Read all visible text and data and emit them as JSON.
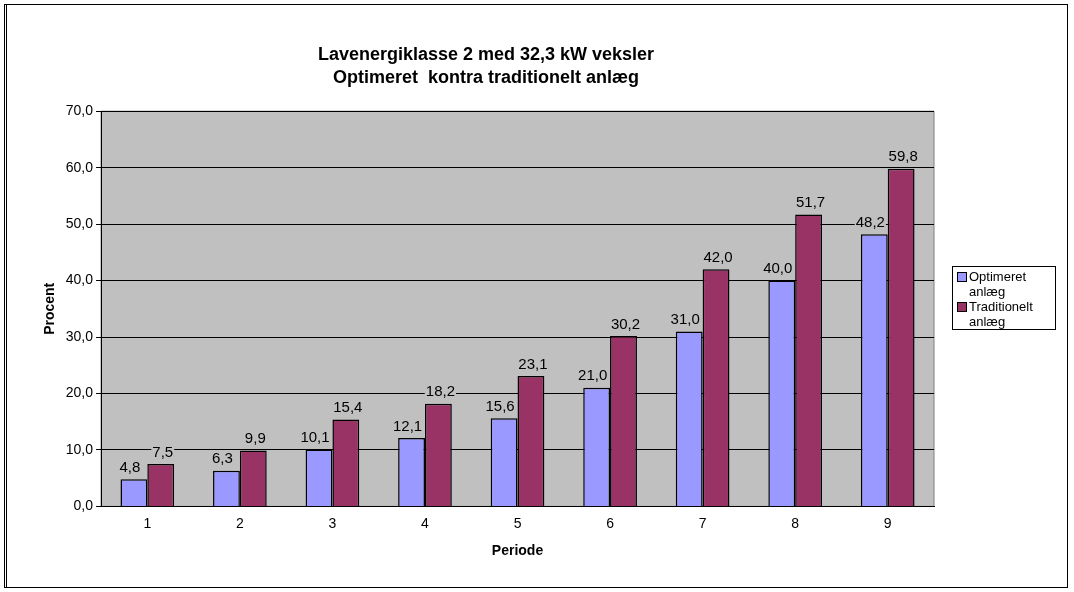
{
  "chart_data": {
    "type": "bar",
    "title": "Lavenergiklasse 2 med 32,3 kW veksler",
    "subtitle": "Optimeret  kontra traditionelt anlæg",
    "xlabel": "Periode",
    "ylabel": "Procent",
    "categories": [
      "1",
      "2",
      "3",
      "4",
      "5",
      "6",
      "7",
      "8",
      "9"
    ],
    "series": [
      {
        "name": "Optimeret anlæg",
        "color": "#9999ff",
        "values": [
          4.8,
          6.3,
          10.1,
          12.1,
          15.6,
          21.0,
          31.0,
          40.0,
          48.2
        ],
        "value_labels": [
          "4,8",
          "6,3",
          "10,1",
          "12,1",
          "15,6",
          "21,0",
          "31,0",
          "40,0",
          "48,2"
        ]
      },
      {
        "name": "Traditionelt anlæg",
        "color": "#993366",
        "values": [
          7.5,
          9.9,
          15.4,
          18.2,
          23.1,
          30.2,
          42.0,
          51.7,
          59.8
        ],
        "value_labels": [
          "7,5",
          "9,9",
          "15,4",
          "18,2",
          "23,1",
          "30,2",
          "42,0",
          "51,7",
          "59,8"
        ]
      }
    ],
    "ylim": [
      0,
      70
    ],
    "yticks": [
      {
        "value": 0,
        "label": "0,0"
      },
      {
        "value": 10,
        "label": "10,0"
      },
      {
        "value": 20,
        "label": "20,0"
      },
      {
        "value": 30,
        "label": "30,0"
      },
      {
        "value": 40,
        "label": "40,0"
      },
      {
        "value": 50,
        "label": "50,0"
      },
      {
        "value": 60,
        "label": "60,0"
      },
      {
        "value": 70,
        "label": "70,0"
      }
    ],
    "grid": "y",
    "legend": "right"
  }
}
